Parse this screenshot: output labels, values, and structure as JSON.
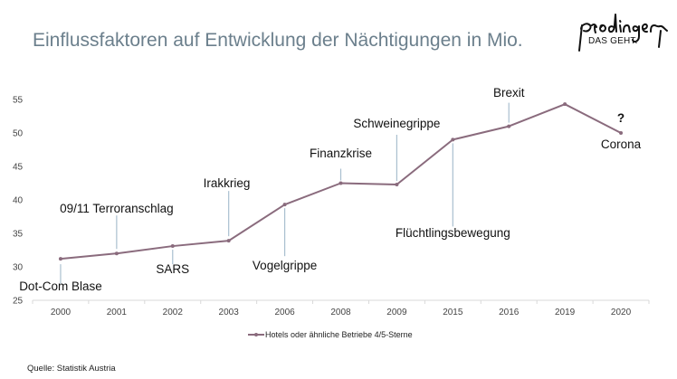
{
  "header": {
    "title": "Einflussfaktoren auf Entwicklung der Nächtigungen in Mio.",
    "logo_text": "prodinger",
    "logo_tagline": "DAS GEHT."
  },
  "footer": {
    "source": "Quelle:  Statistik Austria"
  },
  "colors": {
    "series": "#8a6b7d",
    "callout": "#a9bfcf",
    "title": "#6b7f8c",
    "grid": "#d9d9d9"
  },
  "chart_data": {
    "type": "line",
    "title": "Einflussfaktoren auf Entwicklung der Nächtigungen in Mio.",
    "xlabel": "",
    "ylabel": "",
    "categories": [
      "2000",
      "2001",
      "2002",
      "2003",
      "2006",
      "2008",
      "2009",
      "2015",
      "2016",
      "2019",
      "2020"
    ],
    "series": [
      {
        "name": "Hotels oder ähnliche Betriebe 4/5-Sterne",
        "values": [
          31.2,
          32.0,
          33.1,
          33.9,
          39.3,
          42.5,
          42.3,
          49.0,
          51.0,
          54.3,
          50.0
        ]
      }
    ],
    "ylim": [
      25,
      55
    ],
    "yticks": [
      "25",
      "30",
      "35",
      "40",
      "45",
      "50",
      "55"
    ],
    "grid": false,
    "legend": "bottom-center",
    "annotations": [
      {
        "index": 0,
        "label": "Dot-Com Blase",
        "position": "below"
      },
      {
        "index": 1,
        "label": "09/11 Terroranschlag",
        "position": "above"
      },
      {
        "index": 2,
        "label": "SARS",
        "position": "below"
      },
      {
        "index": 3,
        "label": "Irakkrieg",
        "position": "above"
      },
      {
        "index": 4,
        "label": "Vogelgrippe",
        "position": "below"
      },
      {
        "index": 5,
        "label": "Finanzkrise",
        "position": "above"
      },
      {
        "index": 6,
        "label": "Schweinegrippe",
        "position": "above"
      },
      {
        "index": 7,
        "label": "Flüchtlingsbewegung",
        "position": "below"
      },
      {
        "index": 8,
        "label": "Brexit",
        "position": "above"
      },
      {
        "index": 10,
        "label": "Corona",
        "position": "below"
      },
      {
        "index": 10,
        "label": "?",
        "position": "above"
      }
    ],
    "source": "Quelle:  Statistik Austria"
  }
}
